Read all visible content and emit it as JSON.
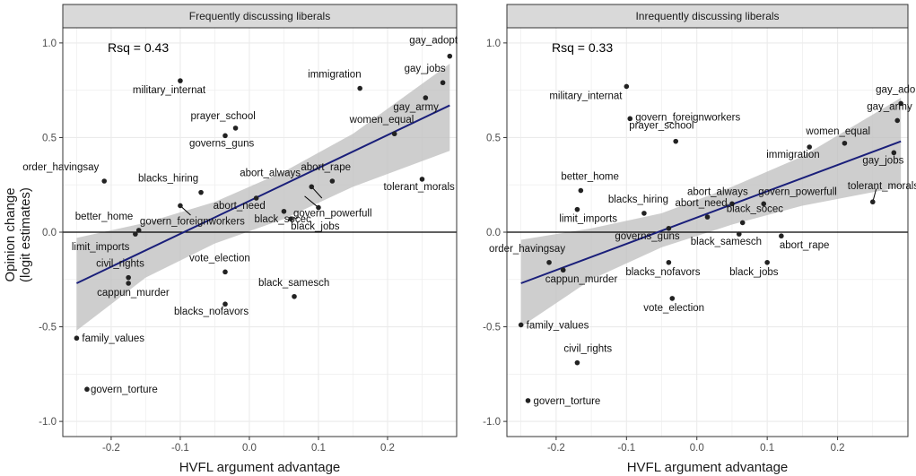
{
  "figure": {
    "y_axis_title_line1": "Opinion change",
    "y_axis_title_line2": "(logit estimates)",
    "colors": {
      "strip_fill": "#d9d9d9",
      "panel_border": "#333333",
      "grid": "#ebebeb",
      "fit_line": "#1a1f7a",
      "ribbon": "#bdbdbd",
      "point": "#222222",
      "zero_line": "#000000"
    }
  },
  "chart_data": [
    {
      "type": "scatter",
      "title": "Frequently discussing liberals",
      "xlabel": "HVFL argument advantage",
      "ylabel": "Opinion change (logit estimates)",
      "xlim": [
        -0.27,
        0.3
      ],
      "ylim": [
        -1.08,
        1.08
      ],
      "xticks": [
        -0.2,
        -0.1,
        0.0,
        0.1,
        0.2
      ],
      "xtick_labels": [
        "-0.2",
        "-0.1",
        "0.0",
        "0.1",
        "0.2"
      ],
      "yticks": [
        -1.0,
        -0.5,
        0.0,
        0.5,
        1.0
      ],
      "ytick_labels": [
        "-1.0",
        "-0.5",
        "0.0",
        "0.5",
        "1.0"
      ],
      "annotation": "Rsq = 0.43",
      "fit": {
        "x0": -0.25,
        "y0": -0.27,
        "x1": 0.29,
        "y1": 0.67
      },
      "ribbon": [
        {
          "x": -0.25,
          "lo": -0.52,
          "hi": -0.03
        },
        {
          "x": -0.15,
          "lo": -0.24,
          "hi": 0.05
        },
        {
          "x": -0.05,
          "lo": -0.06,
          "hi": 0.16
        },
        {
          "x": 0.05,
          "lo": 0.07,
          "hi": 0.32
        },
        {
          "x": 0.15,
          "lo": 0.24,
          "hi": 0.52
        },
        {
          "x": 0.29,
          "lo": 0.43,
          "hi": 0.89
        }
      ],
      "points": [
        {
          "label": "gay_adopt",
          "x": 0.29,
          "y": 0.93
        },
        {
          "label": "gay_jobs",
          "x": 0.28,
          "y": 0.79
        },
        {
          "label": "military_internat",
          "x": -0.1,
          "y": 0.8
        },
        {
          "label": "immigration",
          "x": 0.16,
          "y": 0.76
        },
        {
          "label": "gay_army",
          "x": 0.255,
          "y": 0.71
        },
        {
          "label": "prayer_school",
          "x": -0.02,
          "y": 0.55
        },
        {
          "label": "women_equal",
          "x": 0.21,
          "y": 0.52
        },
        {
          "label": "governs_guns",
          "x": -0.035,
          "y": 0.51
        },
        {
          "label": "order_havingsay",
          "x": -0.21,
          "y": 0.27
        },
        {
          "label": "abort_rape",
          "x": 0.12,
          "y": 0.27
        },
        {
          "label": "tolerant_morals",
          "x": 0.25,
          "y": 0.28
        },
        {
          "label": "abort_always",
          "x": 0.09,
          "y": 0.24
        },
        {
          "label": "blacks_hiring",
          "x": -0.07,
          "y": 0.21
        },
        {
          "label": "abort_need",
          "x": 0.01,
          "y": 0.18
        },
        {
          "label": "govern_powerfull",
          "x": 0.1,
          "y": 0.13
        },
        {
          "label": "better_home",
          "x": -0.16,
          "y": 0.01
        },
        {
          "label": "govern_foreignworkers",
          "x": -0.1,
          "y": 0.14
        },
        {
          "label": "black_socec",
          "x": 0.05,
          "y": 0.11
        },
        {
          "label": "black_jobs",
          "x": 0.06,
          "y": 0.07
        },
        {
          "label": "limit_imports",
          "x": -0.165,
          "y": -0.01
        },
        {
          "label": "civil_rights",
          "x": -0.175,
          "y": -0.24
        },
        {
          "label": "cappun_murder",
          "x": -0.175,
          "y": -0.27
        },
        {
          "label": "vote_election",
          "x": -0.035,
          "y": -0.21
        },
        {
          "label": "black_samesch",
          "x": 0.065,
          "y": -0.34
        },
        {
          "label": "blacks_nofavors",
          "x": -0.035,
          "y": -0.38
        },
        {
          "label": "family_values",
          "x": -0.25,
          "y": -0.56
        },
        {
          "label": "govern_torture",
          "x": -0.235,
          "y": -0.83
        }
      ]
    },
    {
      "type": "scatter",
      "title": "Inrequently discussing liberals",
      "xlabel": "HVFL argument advantage",
      "ylabel": "",
      "xlim": [
        -0.27,
        0.3
      ],
      "ylim": [
        -1.08,
        1.08
      ],
      "xticks": [
        -0.2,
        -0.1,
        0.0,
        0.1,
        0.2
      ],
      "xtick_labels": [
        "-0.2",
        "-0.1",
        "0.0",
        "0.1",
        "0.2"
      ],
      "yticks": [
        -1.0,
        -0.5,
        0.0,
        0.5,
        1.0
      ],
      "ytick_labels": [
        "-1.0",
        "-0.5",
        "0.0",
        "0.5",
        "1.0"
      ],
      "annotation": "Rsq = 0.33",
      "fit": {
        "x0": -0.25,
        "y0": -0.27,
        "x1": 0.29,
        "y1": 0.48
      },
      "ribbon": [
        {
          "x": -0.25,
          "lo": -0.5,
          "hi": -0.04
        },
        {
          "x": -0.15,
          "lo": -0.25,
          "hi": 0.02
        },
        {
          "x": -0.05,
          "lo": -0.08,
          "hi": 0.1
        },
        {
          "x": 0.05,
          "lo": 0.04,
          "hi": 0.24
        },
        {
          "x": 0.15,
          "lo": 0.14,
          "hi": 0.4
        },
        {
          "x": 0.29,
          "lo": 0.24,
          "hi": 0.71
        }
      ],
      "points": [
        {
          "label": "military_internat",
          "x": -0.1,
          "y": 0.77
        },
        {
          "label": "gay_adopt",
          "x": 0.29,
          "y": 0.68
        },
        {
          "label": "govern_foreignworkers",
          "x": -0.095,
          "y": 0.6
        },
        {
          "label": "gay_army",
          "x": 0.285,
          "y": 0.59
        },
        {
          "label": "prayer_school",
          "x": -0.03,
          "y": 0.48
        },
        {
          "label": "women_equal",
          "x": 0.21,
          "y": 0.47
        },
        {
          "label": "immigration",
          "x": 0.16,
          "y": 0.45
        },
        {
          "label": "gay_jobs",
          "x": 0.28,
          "y": 0.42
        },
        {
          "label": "better_home",
          "x": -0.165,
          "y": 0.22
        },
        {
          "label": "tolerant_morals",
          "x": 0.25,
          "y": 0.16
        },
        {
          "label": "abort_always",
          "x": 0.05,
          "y": 0.15
        },
        {
          "label": "govern_powerfull",
          "x": 0.095,
          "y": 0.15
        },
        {
          "label": "limit_imports",
          "x": -0.17,
          "y": 0.12
        },
        {
          "label": "blacks_hiring",
          "x": -0.075,
          "y": 0.1
        },
        {
          "label": "abort_need",
          "x": 0.015,
          "y": 0.08
        },
        {
          "label": "black_socec",
          "x": 0.065,
          "y": 0.05
        },
        {
          "label": "governs_guns",
          "x": -0.04,
          "y": 0.02
        },
        {
          "label": "black_samesch",
          "x": 0.06,
          "y": -0.01
        },
        {
          "label": "abort_rape",
          "x": 0.12,
          "y": -0.02
        },
        {
          "label": "order_havingsay",
          "x": -0.21,
          "y": -0.16
        },
        {
          "label": "blacks_nofavors",
          "x": -0.04,
          "y": -0.16
        },
        {
          "label": "black_jobs",
          "x": 0.1,
          "y": -0.16
        },
        {
          "label": "cappun_murder",
          "x": -0.19,
          "y": -0.2
        },
        {
          "label": "vote_election",
          "x": -0.035,
          "y": -0.35
        },
        {
          "label": "family_values",
          "x": -0.25,
          "y": -0.49
        },
        {
          "label": "civil_rights",
          "x": -0.17,
          "y": -0.69
        },
        {
          "label": "govern_torture",
          "x": -0.24,
          "y": -0.89
        }
      ]
    }
  ]
}
